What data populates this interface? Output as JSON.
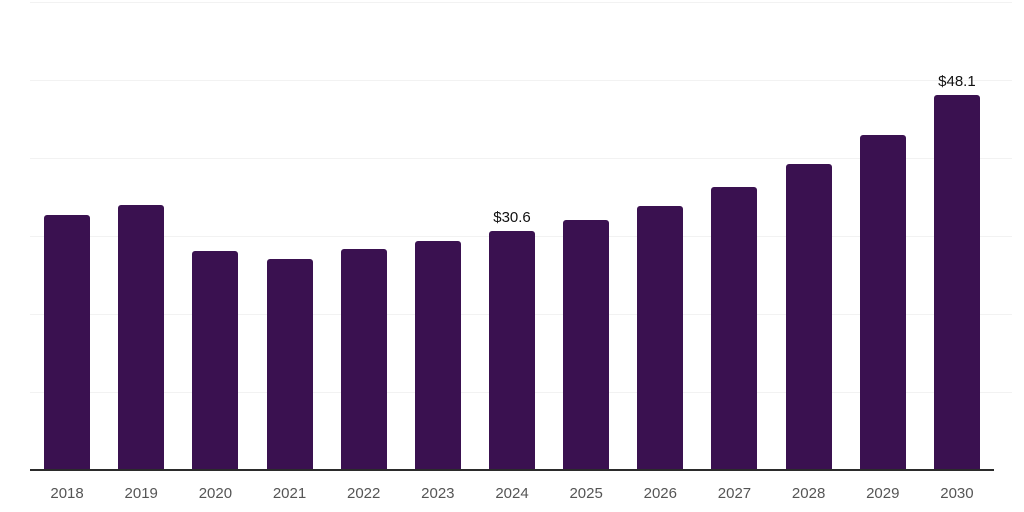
{
  "chart_data": {
    "type": "bar",
    "title": "",
    "xlabel": "",
    "ylabel": "",
    "categories": [
      "2018",
      "2019",
      "2020",
      "2021",
      "2022",
      "2023",
      "2024",
      "2025",
      "2026",
      "2027",
      "2028",
      "2029",
      "2030"
    ],
    "values": [
      32.7,
      34.0,
      28.1,
      27.1,
      28.3,
      29.4,
      30.6,
      32.0,
      33.9,
      36.3,
      39.2,
      42.9,
      48.1
    ],
    "data_labels": [
      null,
      null,
      null,
      null,
      null,
      null,
      "$30.6",
      null,
      null,
      null,
      null,
      null,
      "$48.1"
    ],
    "ylim": [
      0,
      60
    ],
    "grid_step": 10,
    "grid": true,
    "legend": false,
    "y_tick_labels_visible": false,
    "colors": {
      "bar": "#3a1150",
      "axis_line": "#2b2b2b",
      "gridline": "#f2f2f2",
      "tick_label": "#555555",
      "data_label": "#111111",
      "background": "#ffffff"
    }
  }
}
